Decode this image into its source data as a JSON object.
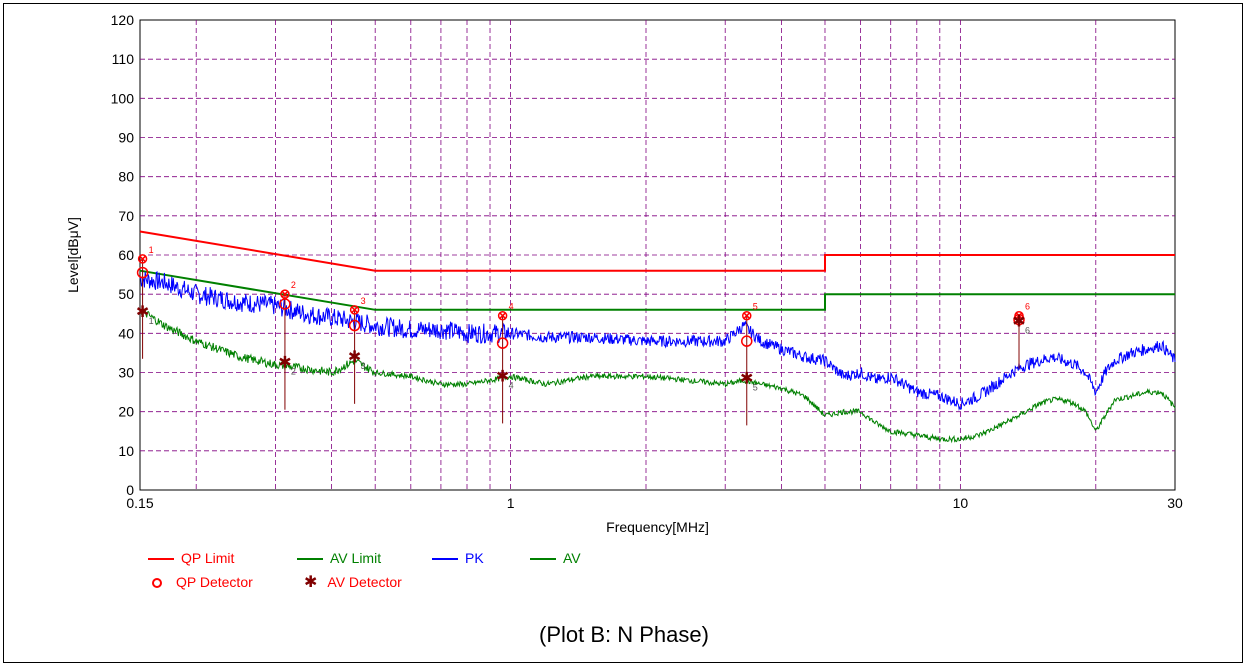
{
  "caption": "(Plot B: N Phase)",
  "chart_data": {
    "type": "line",
    "xlabel": "Frequency[MHz]",
    "ylabel": "Level[dBμV]",
    "x_scale": "log",
    "xlim": [
      0.15,
      30
    ],
    "ylim": [
      0,
      120
    ],
    "grid": true,
    "x_ticks": [
      {
        "value": 0.15,
        "label": "0.15"
      },
      {
        "value": 1,
        "label": "1"
      },
      {
        "value": 10,
        "label": "10"
      },
      {
        "value": 30,
        "label": "30"
      }
    ],
    "y_ticks": [
      "0",
      "10",
      "20",
      "30",
      "40",
      "50",
      "60",
      "70",
      "80",
      "90",
      "100",
      "110",
      "120"
    ],
    "colors": {
      "qp_limit": "#ff0000",
      "av_limit": "#008000",
      "pk": "#0000ff",
      "av": "#008000",
      "qp_detector": "#ff0000",
      "av_detector": "#800000",
      "grid": "#800080"
    },
    "series": [
      {
        "name": "QP Limit",
        "x": [
          0.15,
          0.5,
          0.5,
          5,
          5,
          30
        ],
        "y": [
          66,
          56,
          56,
          56,
          60,
          60
        ]
      },
      {
        "name": "AV Limit",
        "x": [
          0.15,
          0.5,
          0.5,
          5,
          5,
          30
        ],
        "y": [
          56,
          46,
          46,
          46,
          50,
          50
        ]
      },
      {
        "name": "PK",
        "x": [
          0.15,
          0.17,
          0.2,
          0.25,
          0.3,
          0.35,
          0.4,
          0.45,
          0.5,
          0.6,
          0.7,
          0.8,
          0.9,
          1.0,
          1.2,
          1.5,
          2.0,
          2.5,
          3.0,
          3.3,
          3.6,
          4.0,
          4.5,
          5.0,
          5.5,
          6.0,
          6.5,
          7.0,
          8.0,
          9.0,
          10.0,
          11.0,
          12.0,
          13.0,
          14.0,
          15.0,
          16.0,
          17.0,
          18.0,
          19.0,
          20.0,
          21.0,
          22.0,
          24.0,
          26.0,
          28.0,
          30.0
        ],
        "y": [
          54,
          53,
          50,
          48,
          47,
          45,
          44,
          43,
          42,
          41,
          41,
          40,
          40,
          40,
          39,
          39,
          38,
          38,
          38,
          42,
          38,
          36,
          34,
          33,
          29,
          30,
          28,
          29,
          25,
          24,
          22,
          24,
          27,
          30,
          32,
          33,
          34,
          33,
          32,
          30,
          25,
          30,
          33,
          35,
          36,
          37,
          33
        ]
      },
      {
        "name": "AV",
        "x": [
          0.15,
          0.17,
          0.2,
          0.25,
          0.3,
          0.35,
          0.4,
          0.45,
          0.5,
          0.6,
          0.7,
          0.8,
          0.9,
          1.0,
          1.2,
          1.5,
          2.0,
          2.5,
          3.0,
          3.3,
          3.6,
          4.0,
          4.5,
          5.0,
          5.5,
          6.0,
          6.5,
          7.0,
          8.0,
          9.0,
          10.0,
          11.0,
          12.0,
          13.0,
          14.0,
          15.0,
          16.0,
          17.0,
          18.0,
          19.0,
          20.0,
          21.0,
          22.0,
          24.0,
          26.0,
          28.0,
          30.0
        ],
        "y": [
          46,
          42,
          38,
          34,
          32,
          31,
          30,
          33,
          30,
          29,
          27,
          27,
          28,
          29,
          27,
          29,
          29,
          28,
          27,
          28,
          27,
          26,
          24,
          19,
          20,
          20,
          17,
          15,
          14,
          13,
          13,
          14,
          16,
          18,
          20,
          22,
          23,
          23,
          22,
          20,
          15,
          19,
          23,
          24,
          25,
          25,
          21
        ]
      }
    ],
    "markers": [
      {
        "id": "1",
        "freq": 0.152,
        "qp_limit": 59,
        "qp": 55.5,
        "av": 45.5
      },
      {
        "id": "2",
        "freq": 0.315,
        "qp_limit": 50,
        "qp": 47.5,
        "av": 32.5
      },
      {
        "id": "3",
        "freq": 0.45,
        "qp_limit": 46,
        "qp": 42,
        "av": 34
      },
      {
        "id": "4",
        "freq": 0.96,
        "qp_limit": 44.5,
        "qp": 37.5,
        "av": 29
      },
      {
        "id": "5",
        "freq": 3.35,
        "qp_limit": 44.5,
        "qp": 38,
        "av": 28.5
      },
      {
        "id": "6",
        "freq": 13.5,
        "qp_limit": 44.5,
        "qp": 43.5,
        "av": 43
      }
    ]
  },
  "legend": {
    "qp_limit": "QP Limit",
    "av_limit": "AV Limit",
    "pk": "PK",
    "av": "AV",
    "qp_detector": "QP Detector",
    "av_detector": "AV Detector"
  }
}
